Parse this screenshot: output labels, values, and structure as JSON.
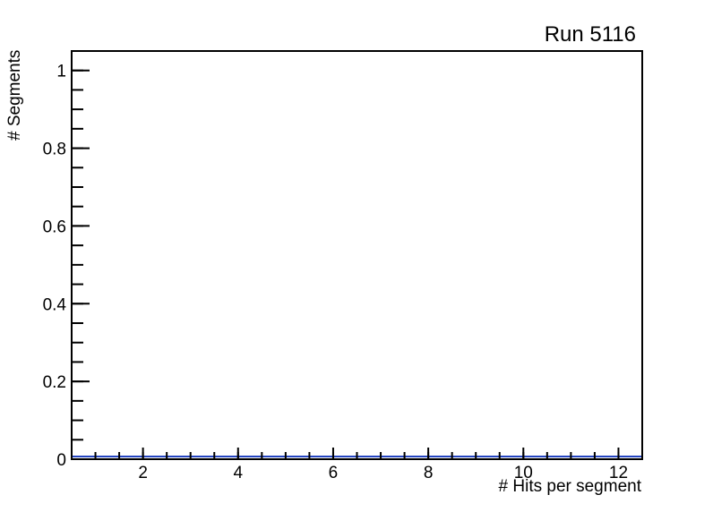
{
  "chart_data": {
    "type": "bar",
    "title": "Run 5116",
    "xlabel": "# Hits per segment",
    "ylabel": "# Segments",
    "xlim": [
      0.5,
      12.5
    ],
    "ylim": [
      0,
      1.05
    ],
    "x_major_ticks": [
      2,
      4,
      6,
      8,
      10,
      12
    ],
    "x_tick_labels": [
      "2",
      "4",
      "6",
      "8",
      "10",
      "12"
    ],
    "x_minor_tick_step": 0.5,
    "y_major_ticks": [
      0,
      0.2,
      0.4,
      0.6,
      0.8,
      1
    ],
    "y_tick_labels": [
      "0",
      "0.2",
      "0.4",
      "0.6",
      "0.8",
      "1"
    ],
    "y_minor_tick_step": 0.05,
    "grid": false,
    "legend": "none",
    "categories": [],
    "values": []
  },
  "colors": {
    "background": "#ffffff",
    "frame": "#000000",
    "text": "#000000",
    "histogram_line": "#2444c0"
  }
}
